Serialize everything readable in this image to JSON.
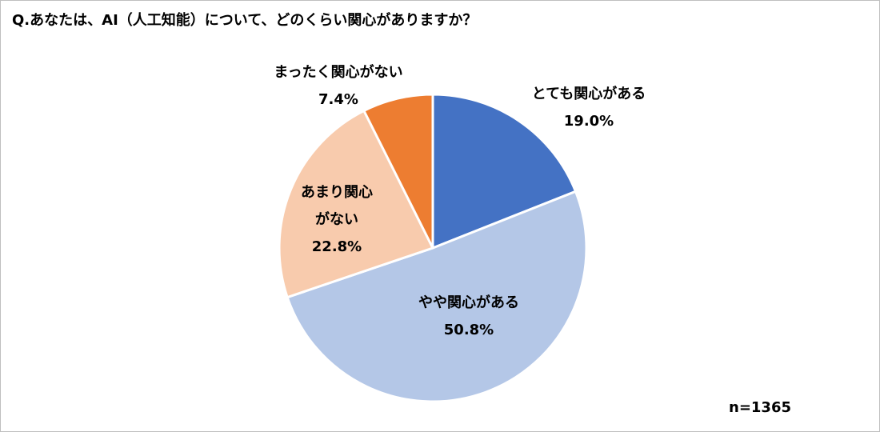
{
  "chart_data": {
    "type": "pie",
    "title": "Q.あなたは、AI（人工知能）について、どのくらい関心がありますか？",
    "categories": [
      "とても関心がある",
      "やや関心がある",
      "あまり関心がない",
      "まったく関心がない"
    ],
    "values": [
      19.0,
      50.8,
      22.8,
      7.4
    ],
    "value_labels": [
      "19.0%",
      "50.8%",
      "22.8%",
      "7.4%"
    ],
    "colors": [
      "#4472c4",
      "#b4c7e7",
      "#f8cbad",
      "#ed7d31"
    ],
    "annotation": "n=1365"
  }
}
